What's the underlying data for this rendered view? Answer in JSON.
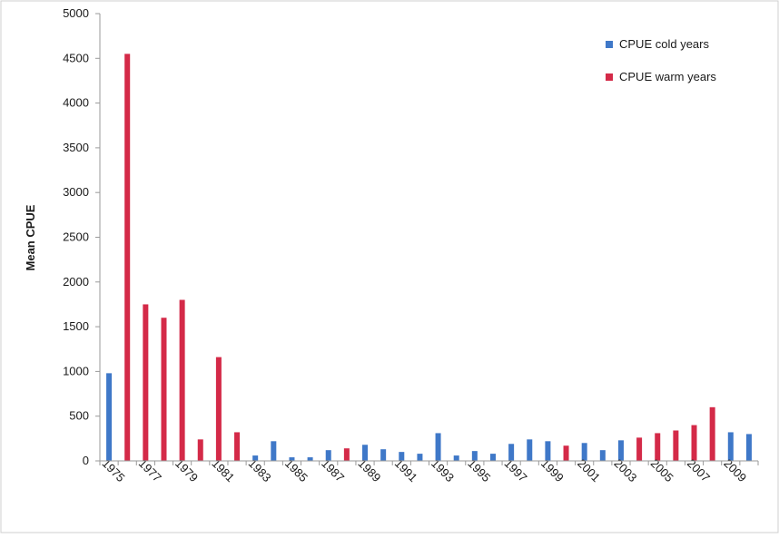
{
  "chart_data": {
    "type": "bar",
    "title": "",
    "xlabel": "",
    "ylabel": "Mean CPUE",
    "ylim": [
      0,
      5000
    ],
    "yticks": [
      0,
      500,
      1000,
      1500,
      2000,
      2500,
      3000,
      3500,
      4000,
      4500,
      5000
    ],
    "categories": [
      1975,
      1976,
      1977,
      1978,
      1979,
      1980,
      1981,
      1982,
      1983,
      1984,
      1985,
      1986,
      1987,
      1988,
      1989,
      1990,
      1991,
      1992,
      1993,
      1994,
      1995,
      1996,
      1997,
      1998,
      1999,
      2000,
      2001,
      2002,
      2003,
      2004,
      2005,
      2006,
      2007,
      2008,
      2009,
      2010
    ],
    "xtick_labels": [
      "1975",
      "1977",
      "1979",
      "1981",
      "1983",
      "1985",
      "1987",
      "1989",
      "1991",
      "1993",
      "1995",
      "1997",
      "1999",
      "2001",
      "2003",
      "2005",
      "2007",
      "2009"
    ],
    "series": [
      {
        "name": "CPUE cold years",
        "color": "#3f78c8",
        "values": [
          980,
          null,
          null,
          null,
          null,
          null,
          null,
          null,
          60,
          220,
          40,
          40,
          120,
          null,
          180,
          130,
          100,
          80,
          310,
          60,
          110,
          80,
          190,
          240,
          220,
          null,
          200,
          120,
          230,
          null,
          null,
          null,
          null,
          null,
          320,
          300
        ]
      },
      {
        "name": "CPUE warm years",
        "color": "#d42a48",
        "values": [
          null,
          4550,
          1750,
          1600,
          1800,
          240,
          1160,
          320,
          null,
          null,
          null,
          null,
          null,
          140,
          null,
          null,
          null,
          null,
          null,
          null,
          null,
          null,
          null,
          null,
          null,
          170,
          null,
          null,
          null,
          260,
          310,
          340,
          400,
          600,
          null,
          null
        ]
      }
    ],
    "legend_position": "top-right",
    "grid": false
  }
}
